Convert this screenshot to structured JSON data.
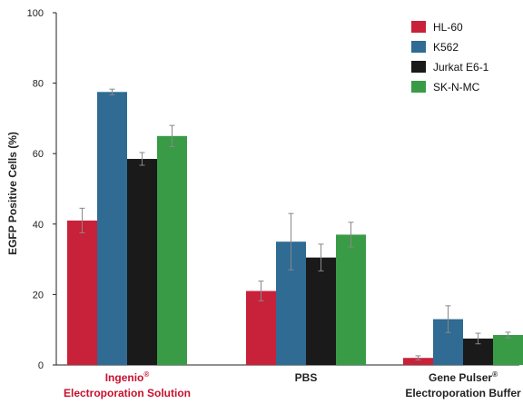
{
  "chart_data": {
    "type": "bar",
    "title": "",
    "xlabel": "",
    "ylabel": "EGFP Positive Cells (%)",
    "ylim": [
      0,
      100
    ],
    "yticks": [
      0,
      20,
      40,
      60,
      80,
      100
    ],
    "grid": false,
    "legend_position": "top-right",
    "categories": [
      {
        "lines": [
          [
            "Ingenio",
            "®"
          ],
          [
            "Electroporation Solution",
            ""
          ]
        ],
        "color": "#c8102e"
      },
      {
        "lines": [
          [
            "PBS",
            ""
          ]
        ],
        "color": "#222222"
      },
      {
        "lines": [
          [
            "Gene Pulser",
            "®"
          ],
          [
            "Electroporation Buffer",
            ""
          ]
        ],
        "color": "#222222"
      }
    ],
    "series": [
      {
        "name": "HL-60",
        "color": "#c8213a",
        "values": [
          41,
          21,
          2
        ],
        "errors": [
          3.5,
          2.8,
          0.6
        ]
      },
      {
        "name": "K562",
        "color": "#2f6b93",
        "values": [
          77.5,
          35,
          13
        ],
        "errors": [
          0.8,
          8.0,
          3.8
        ]
      },
      {
        "name": "Jurkat E6-1",
        "color": "#1a1a1a",
        "values": [
          58.5,
          30.5,
          7.5
        ],
        "errors": [
          1.8,
          3.8,
          1.5
        ]
      },
      {
        "name": "SK-N-MC",
        "color": "#3a9b47",
        "values": [
          65,
          37,
          8.5
        ],
        "errors": [
          3.0,
          3.5,
          0.8
        ]
      }
    ]
  }
}
